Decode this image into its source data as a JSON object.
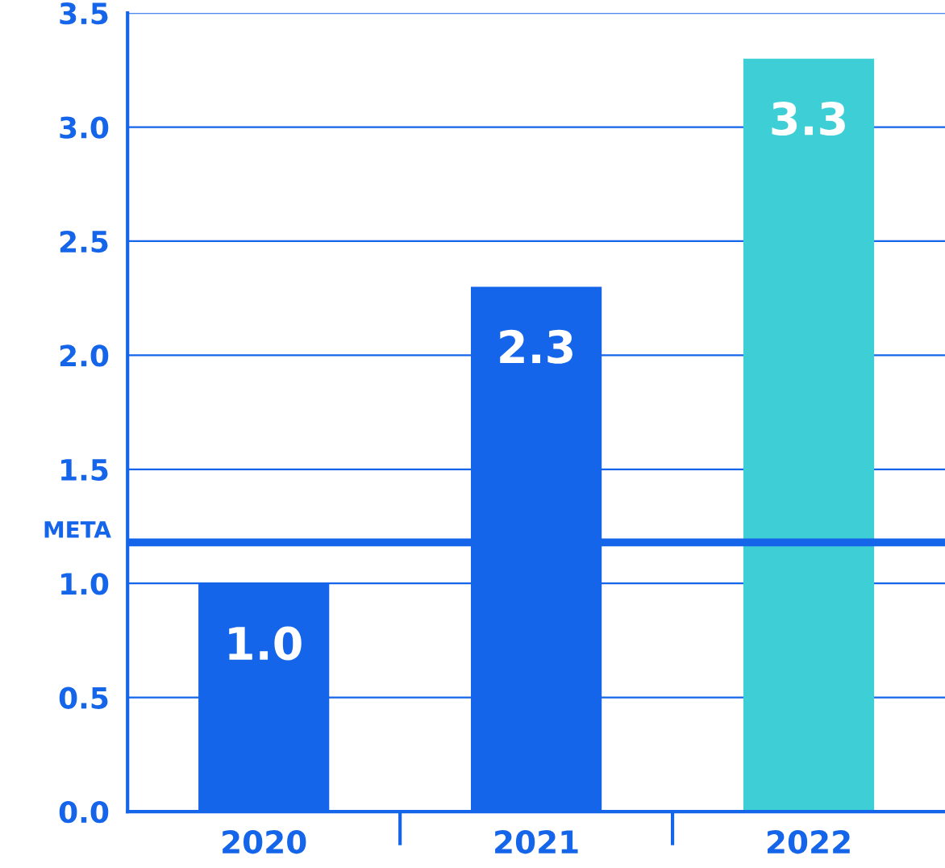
{
  "chart_data": {
    "type": "bar",
    "categories": [
      "2020",
      "2021",
      "2022"
    ],
    "values": [
      1.0,
      2.3,
      3.3
    ],
    "colors": [
      "#1565ea",
      "#1565ea",
      "#3ecfd6"
    ],
    "value_labels": [
      "1.0",
      "2.3",
      "3.3"
    ],
    "ylim": [
      0,
      3.5
    ],
    "yticks": [
      "0.0",
      0.5,
      "1.0",
      1.5,
      "2.0",
      2.5,
      "3.0",
      3.5
    ],
    "grid": "y",
    "legend": false,
    "ref_lines": [
      {
        "axis": "y",
        "value": 1.18,
        "label": "META",
        "color": "#1565ea",
        "line_style": "solid"
      }
    ]
  }
}
